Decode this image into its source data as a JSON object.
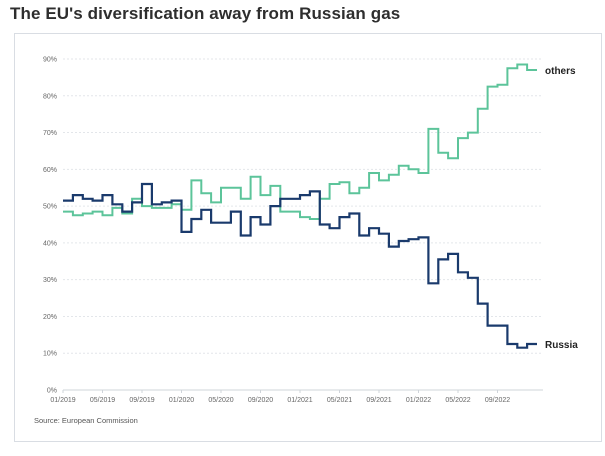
{
  "title": "The EU's diversification away from Russian gas",
  "source": "Source: European Commission",
  "chart_data": {
    "type": "line",
    "step": true,
    "ylim": [
      0,
      90
    ],
    "yticks": [
      0,
      10,
      20,
      30,
      40,
      50,
      60,
      70,
      80,
      90
    ],
    "ytick_labels": [
      "0%",
      "10%",
      "20%",
      "30%",
      "40%",
      "50%",
      "60%",
      "70%",
      "80%",
      "90%"
    ],
    "xtick_labels": [
      "01/2019",
      "05/2019",
      "09/2019",
      "01/2020",
      "05/2020",
      "09/2020",
      "01/2021",
      "05/2021",
      "09/2021",
      "01/2022",
      "05/2022",
      "09/2022"
    ],
    "x_start": "01/2019",
    "grid": "horizontal-dashed",
    "series": [
      {
        "name": "others",
        "color": "#5cc49a",
        "values": [
          48.5,
          47.5,
          48,
          48.5,
          47.5,
          49.5,
          48,
          52,
          50,
          49.5,
          49.5,
          50.5,
          49,
          57,
          53.5,
          51,
          55,
          55,
          52,
          58,
          53,
          55.5,
          48.5,
          48.5,
          47,
          46.5,
          52,
          56,
          56.5,
          53.5,
          55,
          59,
          57,
          58.5,
          61,
          60,
          59,
          71,
          64.5,
          63,
          68.5,
          70,
          76.5,
          82.5,
          83,
          87.5,
          88.5,
          87
        ]
      },
      {
        "name": "Russia",
        "color": "#1a3a6c",
        "values": [
          51.5,
          53,
          52,
          51.5,
          53,
          50.5,
          48.5,
          51,
          56,
          50.5,
          51,
          51.5,
          43,
          46.5,
          49,
          45.5,
          45.5,
          48.5,
          42,
          47,
          45,
          50,
          52,
          52,
          53,
          54,
          45,
          44,
          47,
          48,
          42,
          44,
          42.5,
          39,
          40.5,
          41,
          41.5,
          29,
          35.5,
          37,
          32,
          30.5,
          23.5,
          17.5,
          17.5,
          12.5,
          11.5,
          12.5
        ]
      }
    ]
  }
}
